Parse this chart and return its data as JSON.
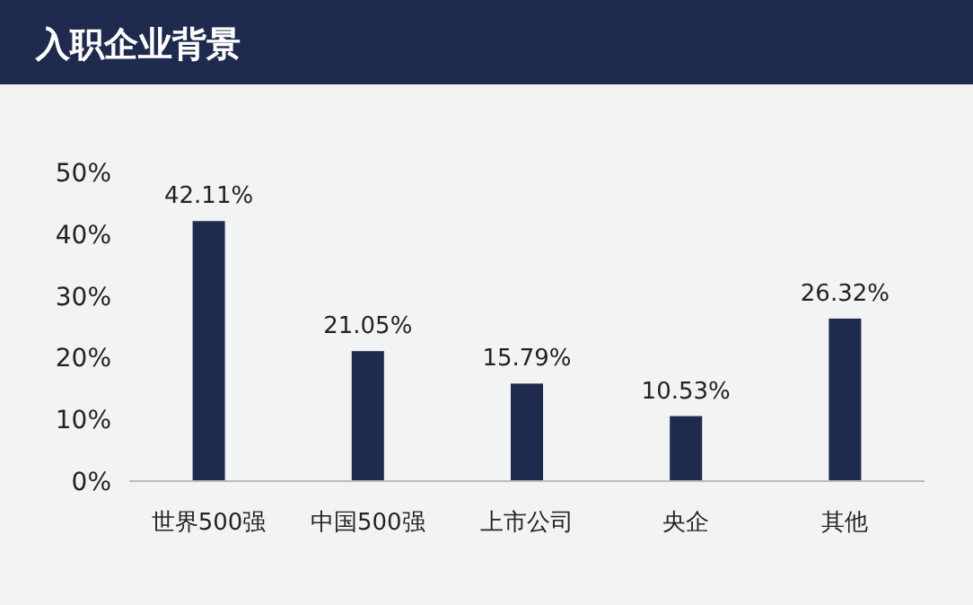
{
  "chart_data": {
    "type": "bar",
    "title": "入职企业背景",
    "categories": [
      "世界500强",
      "中国500强",
      "上市公司",
      "央企",
      "其他"
    ],
    "values": [
      42.11,
      21.05,
      15.79,
      10.53,
      26.32
    ],
    "value_labels": [
      "42.11%",
      "21.05%",
      "15.79%",
      "10.53%",
      "26.32%"
    ],
    "color": "#1f2a4f",
    "ylim": [
      0,
      50
    ],
    "yticks": [
      {
        "value": 0,
        "label": "0%"
      },
      {
        "value": 10,
        "label": "10%"
      },
      {
        "value": 20,
        "label": "20%"
      },
      {
        "value": 30,
        "label": "30%"
      },
      {
        "value": 40,
        "label": "40%"
      },
      {
        "value": 50,
        "label": "50%"
      }
    ],
    "grid": false
  }
}
